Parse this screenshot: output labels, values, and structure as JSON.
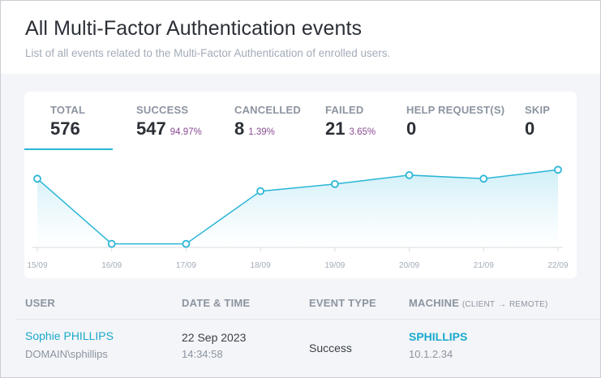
{
  "header": {
    "title": "All Multi-Factor Authentication events",
    "subtitle": "List of all events related to the Multi-Factor Authentication of enrolled users."
  },
  "stats": {
    "total": {
      "label": "TOTAL",
      "value": "576"
    },
    "success": {
      "label": "SUCCESS",
      "value": "547",
      "percent": "94.97%"
    },
    "cancelled": {
      "label": "CANCELLED",
      "value": "8",
      "percent": "1.39%"
    },
    "failed": {
      "label": "FAILED",
      "value": "21",
      "percent": "3.65%"
    },
    "help": {
      "label": "HELP REQUEST(S)",
      "value": "0"
    },
    "skip": {
      "label": "SKIP",
      "value": "0"
    }
  },
  "colors": {
    "accent": "#2ab6d6",
    "percent": "#8a4b93",
    "link": "#1aa9cc"
  },
  "chart_data": {
    "type": "area",
    "categories": [
      "15/09",
      "16/09",
      "17/09",
      "18/09",
      "19/09",
      "20/09",
      "21/09",
      "22/09"
    ],
    "values": [
      77,
      4,
      4,
      63,
      71,
      81,
      77,
      87
    ],
    "ylim": [
      0,
      100
    ],
    "grid": false,
    "legend": "none"
  },
  "table": {
    "columns": {
      "user": "USER",
      "datetime": "DATE & TIME",
      "event_type": "EVENT TYPE",
      "machine": "MACHINE",
      "machine_client": "(CLIENT",
      "machine_arrow": "→",
      "machine_remote": "REMOTE)"
    },
    "rows": [
      {
        "user_name": "Sophie PHILLIPS",
        "user_account": "DOMAIN\\sphillips",
        "date": "22 Sep 2023",
        "time": "14:34:58",
        "event_type": "Success",
        "machine_name": "SPHILLIPS",
        "machine_ip": "10.1.2.34"
      }
    ]
  }
}
